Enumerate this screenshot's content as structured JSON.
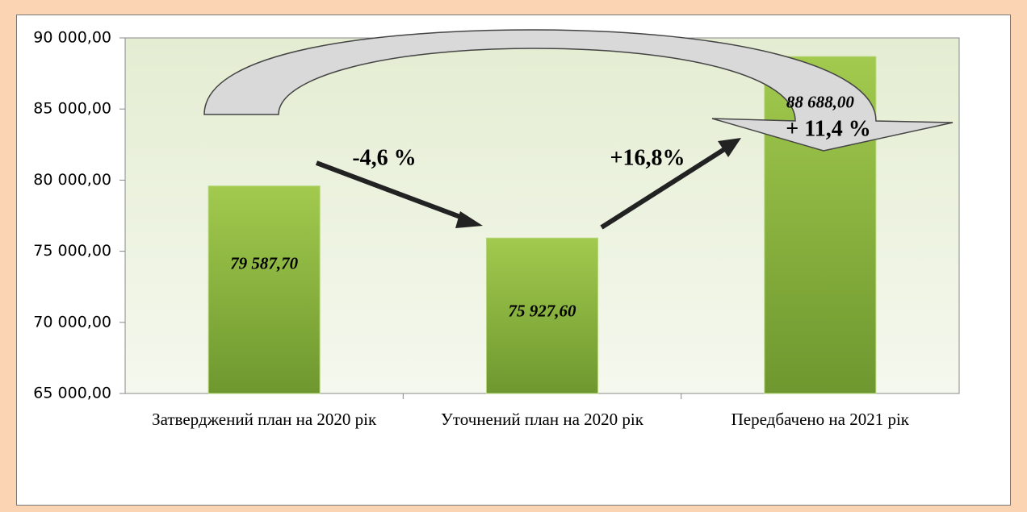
{
  "chart_data": {
    "type": "bar",
    "categories": [
      "Затверджений план на 2020 рік",
      "Уточнений план на 2020 рік",
      "Передбачено на 2021 рік"
    ],
    "values": [
      79587.7,
      75927.6,
      88688
    ],
    "value_labels": [
      "79 587,70",
      "75 927,60",
      "88 688,00"
    ],
    "color": "#8cb843",
    "ylim": [
      65000,
      90000
    ],
    "yticks": [
      {
        "value": 65000,
        "label": "65 000,00"
      },
      {
        "value": 70000,
        "label": "70 000,00"
      },
      {
        "value": 75000,
        "label": "75 000,00"
      },
      {
        "value": 80000,
        "label": "80 000,00"
      },
      {
        "value": 85000,
        "label": "85 000,00"
      },
      {
        "value": 90000,
        "label": "90 000,00"
      }
    ],
    "annotations": [
      "-4,6 %",
      "+16,8%",
      "+ 11,4 %"
    ]
  }
}
